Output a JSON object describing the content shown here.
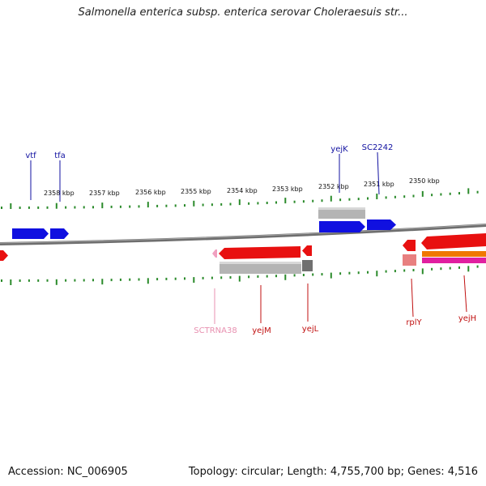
{
  "title": "Salmonella enterica subsp. enterica serovar Choleraesuis str...",
  "accession": "Accession: NC_006905",
  "summary": "Topology: circular; Length: 4,755,700 bp; Genes: 4,516",
  "colors": {
    "forward_gene": "#1010e0",
    "reverse_gene": "#e81010",
    "rna": "#f0a0c0",
    "tick": "#2a8a2a",
    "backbone": "#808080",
    "pseudo": "#b0b0b0",
    "forward_label": "#1010a0",
    "reverse_label": "#c01010",
    "rna_label": "#e890b0"
  },
  "scale_labels": [
    "2358 kbp",
    "2357 kbp",
    "2356 kbp",
    "2355 kbp",
    "2354 kbp",
    "2353 kbp",
    "2352 kbp",
    "2351 kbp",
    "2350 kbp"
  ],
  "gene_labels": {
    "forward": [
      "vtf",
      "tfa",
      "yejK",
      "SC2242"
    ],
    "reverse": [
      "yejM",
      "yejL",
      "rplY",
      "yejH"
    ],
    "rna": [
      "SCTRNA38"
    ]
  }
}
